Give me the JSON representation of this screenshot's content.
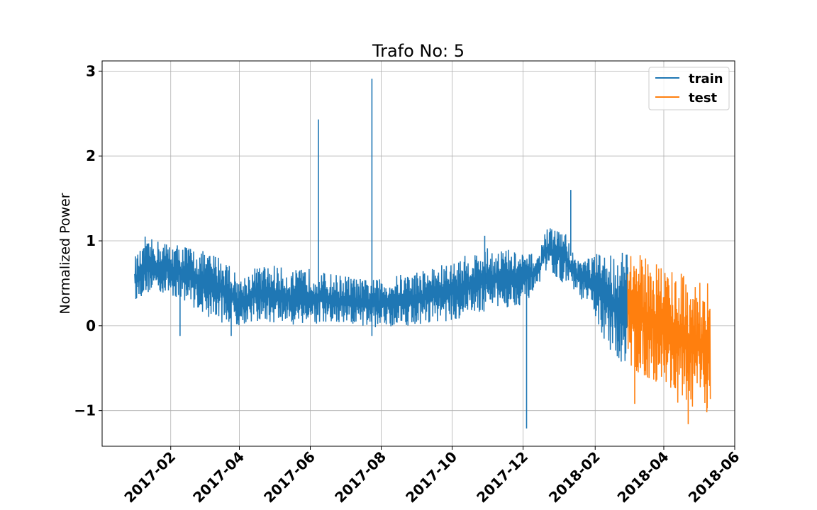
{
  "chart_data": {
    "type": "line",
    "title": "Trafo No: 5",
    "xlabel": "",
    "ylabel": "Normalized Power",
    "x_axis_type": "date",
    "xlim": [
      "2016-12-04",
      "2018-06-01"
    ],
    "ylim": [
      -1.42,
      3.12
    ],
    "x_ticks": [
      "2017-02",
      "2017-04",
      "2017-06",
      "2017-08",
      "2017-10",
      "2017-12",
      "2018-02",
      "2018-04",
      "2018-06"
    ],
    "y_ticks": [
      -1,
      0,
      1,
      2,
      3
    ],
    "y_tick_labels": [
      "−1",
      "0",
      "1",
      "2",
      "3"
    ],
    "grid": true,
    "legend_position": "top-right",
    "series": [
      {
        "name": "train",
        "color": "#1f77b4",
        "x_range": [
          "2017-01-01",
          "2018-03-01"
        ],
        "envelope": [
          {
            "x": "2017-01-01",
            "low": 0.3,
            "high": 0.82
          },
          {
            "x": "2017-01-15",
            "low": 0.4,
            "high": 1.02
          },
          {
            "x": "2017-02-01",
            "low": 0.35,
            "high": 0.98
          },
          {
            "x": "2017-02-15",
            "low": 0.28,
            "high": 0.95
          },
          {
            "x": "2017-03-01",
            "low": 0.12,
            "high": 0.88
          },
          {
            "x": "2017-03-20",
            "low": 0.02,
            "high": 0.82
          },
          {
            "x": "2017-04-01",
            "low": 0.0,
            "high": 0.55
          },
          {
            "x": "2017-04-15",
            "low": 0.05,
            "high": 0.7
          },
          {
            "x": "2017-05-01",
            "low": 0.02,
            "high": 0.72
          },
          {
            "x": "2017-05-15",
            "low": 0.0,
            "high": 0.65
          },
          {
            "x": "2017-06-01",
            "low": 0.02,
            "high": 0.68
          },
          {
            "x": "2017-06-15",
            "low": 0.0,
            "high": 0.62
          },
          {
            "x": "2017-07-01",
            "low": -0.02,
            "high": 0.6
          },
          {
            "x": "2017-07-15",
            "low": -0.02,
            "high": 0.55
          },
          {
            "x": "2017-08-01",
            "low": -0.02,
            "high": 0.55
          },
          {
            "x": "2017-08-15",
            "low": 0.0,
            "high": 0.6
          },
          {
            "x": "2017-09-01",
            "low": 0.0,
            "high": 0.65
          },
          {
            "x": "2017-09-15",
            "low": 0.05,
            "high": 0.7
          },
          {
            "x": "2017-10-01",
            "low": 0.05,
            "high": 0.75
          },
          {
            "x": "2017-10-15",
            "low": 0.1,
            "high": 0.85
          },
          {
            "x": "2017-11-01",
            "low": 0.18,
            "high": 0.92
          },
          {
            "x": "2017-11-15",
            "low": 0.2,
            "high": 0.92
          },
          {
            "x": "2017-12-01",
            "low": 0.25,
            "high": 0.85
          },
          {
            "x": "2017-12-15",
            "low": 0.45,
            "high": 0.85
          },
          {
            "x": "2017-12-20",
            "low": 0.65,
            "high": 1.15
          },
          {
            "x": "2018-01-05",
            "low": 0.5,
            "high": 1.15
          },
          {
            "x": "2018-01-15",
            "low": 0.4,
            "high": 0.8
          },
          {
            "x": "2018-02-01",
            "low": 0.1,
            "high": 0.85
          },
          {
            "x": "2018-02-15",
            "low": -0.4,
            "high": 0.88
          },
          {
            "x": "2018-03-01",
            "low": -0.45,
            "high": 0.9
          }
        ],
        "spikes": [
          {
            "x": "2017-01-10",
            "y": 1.05
          },
          {
            "x": "2017-02-09",
            "y": -0.12
          },
          {
            "x": "2017-03-25",
            "y": -0.12
          },
          {
            "x": "2017-06-08",
            "y": 2.43
          },
          {
            "x": "2017-07-24",
            "y": 2.91
          },
          {
            "x": "2017-07-24",
            "y": -0.12
          },
          {
            "x": "2017-10-29",
            "y": 1.06
          },
          {
            "x": "2017-12-04",
            "y": -1.21
          },
          {
            "x": "2018-01-11",
            "y": 1.6
          }
        ]
      },
      {
        "name": "test",
        "color": "#ff7f0e",
        "x_range": [
          "2018-03-01",
          "2018-05-11"
        ],
        "envelope": [
          {
            "x": "2018-03-01",
            "low": -0.45,
            "high": 0.95
          },
          {
            "x": "2018-03-10",
            "low": -0.6,
            "high": 0.85
          },
          {
            "x": "2018-03-20",
            "low": -0.65,
            "high": 0.8
          },
          {
            "x": "2018-04-01",
            "low": -0.7,
            "high": 0.75
          },
          {
            "x": "2018-04-10",
            "low": -0.9,
            "high": 0.7
          },
          {
            "x": "2018-04-20",
            "low": -0.95,
            "high": 0.6
          },
          {
            "x": "2018-05-01",
            "low": -1.0,
            "high": 0.55
          },
          {
            "x": "2018-05-11",
            "low": -1.0,
            "high": 0.5
          }
        ],
        "spikes": [
          {
            "x": "2018-03-07",
            "y": -0.92
          },
          {
            "x": "2018-04-22",
            "y": -1.16
          },
          {
            "x": "2018-05-08",
            "y": -1.02
          }
        ]
      }
    ]
  }
}
